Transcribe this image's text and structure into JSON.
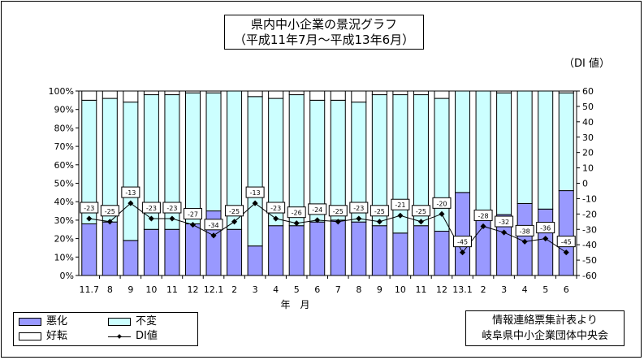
{
  "title_line1": "県内中小企業の景況グラフ",
  "title_line2": "（平成11年7月～平成13年6月）",
  "unit_label": "（DI 値）",
  "x_axis_label": "年　月",
  "legend": {
    "bad": "悪化",
    "same": "不変",
    "good": "好転",
    "di": "DI値"
  },
  "source_line1": "情報連絡票集計表より",
  "source_line2": "岐阜県中小企業団体中央会",
  "colors": {
    "bad": "#9999ff",
    "same": "#ccffff",
    "good": "#ffffff",
    "line": "#000000"
  },
  "chart_data": {
    "type": "bar",
    "stacked": true,
    "categories": [
      "11.7",
      "8",
      "9",
      "10",
      "11",
      "12",
      "12.1",
      "2",
      "3",
      "4",
      "5",
      "6",
      "7",
      "8",
      "9",
      "10",
      "11",
      "12",
      "13.1",
      "2",
      "3",
      "4",
      "5",
      "6"
    ],
    "series": [
      {
        "name": "悪化",
        "axis": "left",
        "values": [
          28,
          29,
          19,
          25,
          25,
          28,
          35,
          25,
          16,
          27,
          27,
          29,
          30,
          29,
          27,
          23,
          27,
          24,
          45,
          30,
          33,
          39,
          36,
          46
        ]
      },
      {
        "name": "不変",
        "axis": "left",
        "values": [
          67,
          67,
          75,
          73,
          73,
          71,
          64,
          75,
          81,
          69,
          71,
          66,
          65,
          65,
          71,
          75,
          71,
          72,
          55,
          70,
          66,
          61,
          64,
          53
        ]
      },
      {
        "name": "好転",
        "axis": "left",
        "values": [
          5,
          4,
          6,
          2,
          2,
          1,
          1,
          0,
          3,
          4,
          2,
          5,
          5,
          6,
          2,
          2,
          2,
          4,
          0,
          0,
          1,
          0,
          0,
          1
        ]
      },
      {
        "name": "DI値",
        "type": "line",
        "axis": "right",
        "values": [
          -23,
          -25,
          -13,
          -23,
          -23,
          -27,
          -34,
          -25,
          -13,
          -23,
          -26,
          -24,
          -25,
          -23,
          -25,
          -21,
          -25,
          -20,
          -45,
          -28,
          -32,
          -38,
          -36,
          -45
        ]
      }
    ],
    "y_left": {
      "range": [
        0,
        100
      ],
      "ticks": [
        "0%",
        "10%",
        "20%",
        "30%",
        "40%",
        "50%",
        "60%",
        "70%",
        "80%",
        "90%",
        "100%"
      ]
    },
    "y_right": {
      "range": [
        -60,
        60
      ],
      "ticks": [
        "-60",
        "-50",
        "-40",
        "-30",
        "-20",
        "-10",
        "0",
        "10",
        "20",
        "30",
        "40",
        "50",
        "60"
      ]
    },
    "data_labels": [
      "-23",
      "-25",
      "-13",
      "-23",
      "-23",
      "-27",
      "-34",
      "-25",
      "-13",
      "-23",
      "-26",
      "-24",
      "-25",
      "-23",
      "-25",
      "-21",
      "-25",
      "-20",
      "-45",
      "-28",
      "-32",
      "-38",
      "-36",
      "-45"
    ],
    "legend_position": "bottom-left",
    "grid": false
  }
}
